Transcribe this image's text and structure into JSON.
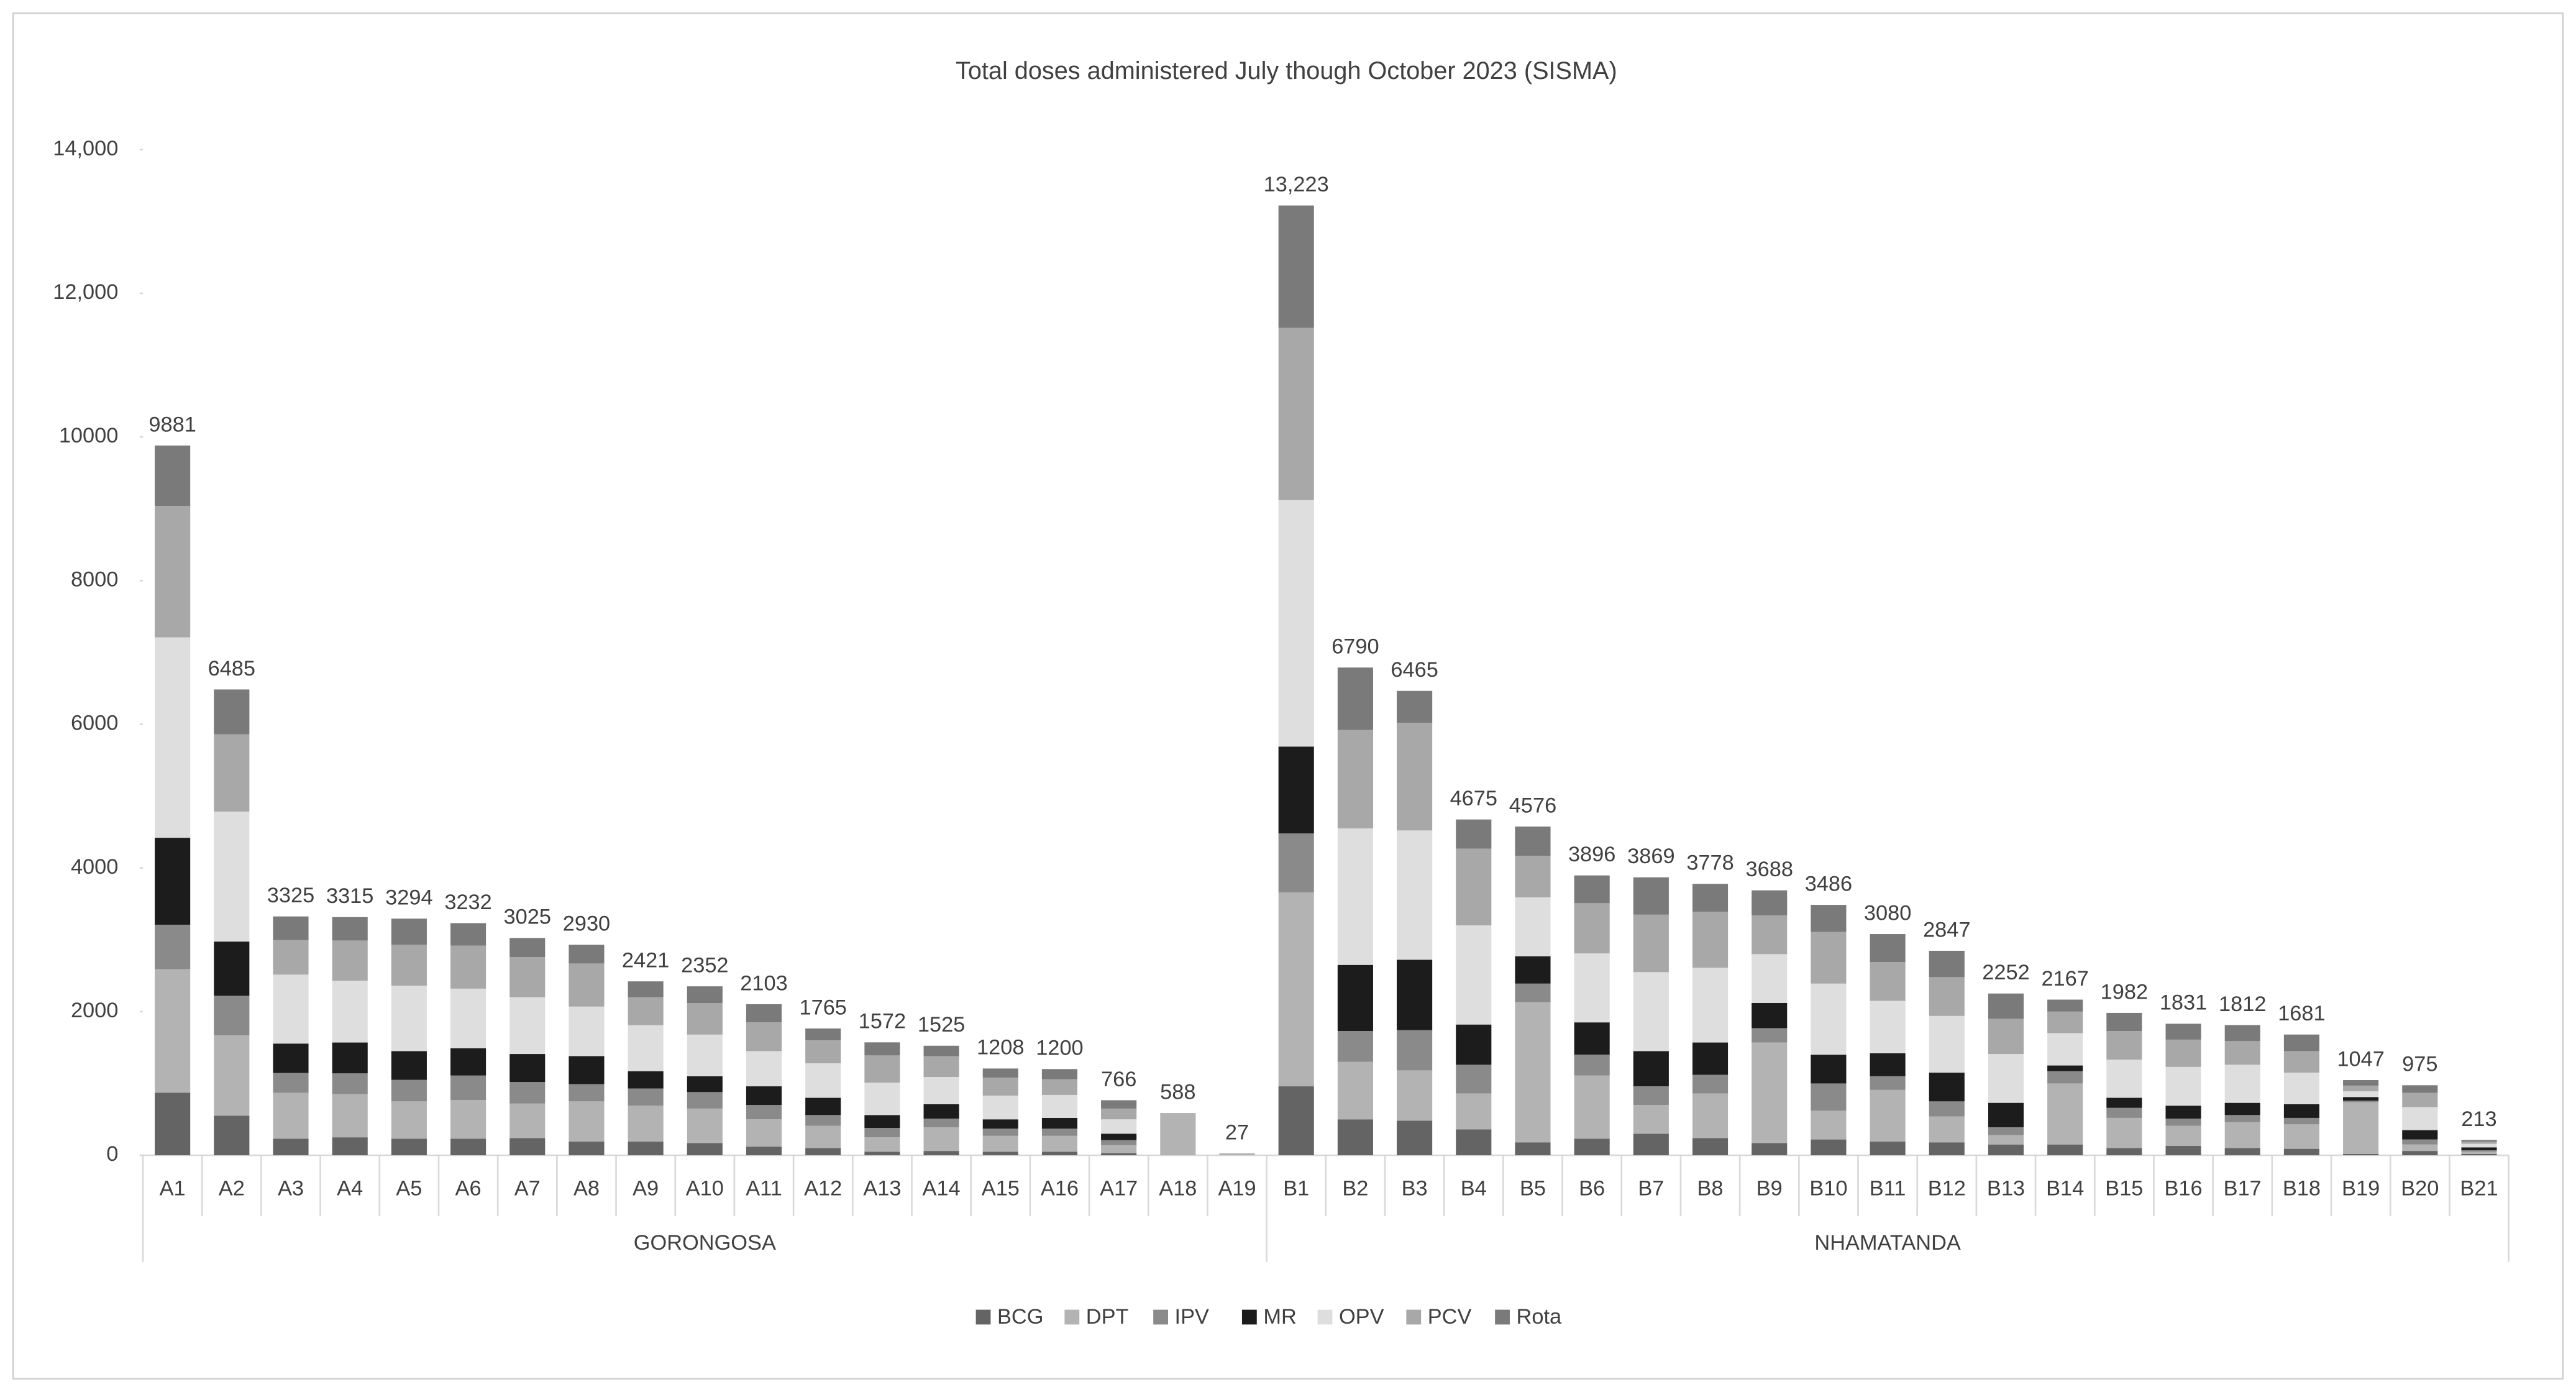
{
  "chart_data": {
    "type": "stacked_bar",
    "title": "Total doses administered July though October 2023 (SISMA)",
    "groups": [
      {
        "name": "GORONGOSA",
        "categories": [
          "A1",
          "A2",
          "A3",
          "A4",
          "A5",
          "A6",
          "A7",
          "A8",
          "A9",
          "A10",
          "A11",
          "A12",
          "A13",
          "A14",
          "A15",
          "A16",
          "A17",
          "A18",
          "A19"
        ]
      },
      {
        "name": "NHAMATANDA",
        "categories": [
          "B1",
          "B2",
          "B3",
          "B4",
          "B5",
          "B6",
          "B7",
          "B8",
          "B9",
          "B10",
          "B11",
          "B12",
          "B13",
          "B14",
          "B15",
          "B16",
          "B17",
          "B18",
          "B19",
          "B20",
          "B21"
        ]
      }
    ],
    "series": [
      {
        "name": "BCG",
        "color": "#646464",
        "values": [
          870,
          550,
          230,
          250,
          230,
          230,
          240,
          190,
          190,
          170,
          120,
          100,
          50,
          60,
          50,
          50,
          30,
          0,
          0,
          960,
          500,
          482,
          360,
          180,
          230,
          300,
          240,
          170,
          220,
          190,
          180,
          150,
          150,
          100,
          130,
          100,
          90,
          20,
          60,
          20
        ]
      },
      {
        "name": "DPT",
        "color": "#b3b3b3",
        "values": [
          1720,
          1120,
          640,
          600,
          520,
          540,
          480,
          560,
          500,
          480,
          380,
          310,
          200,
          330,
          220,
          220,
          110,
          588,
          27,
          2700,
          800,
          700,
          500,
          1950,
          880,
          400,
          620,
          1400,
          400,
          720,
          360,
          130,
          850,
          420,
          280,
          360,
          340,
          720,
          90,
          30
        ]
      },
      {
        "name": "IPV",
        "color": "#8a8a8a",
        "values": [
          620,
          550,
          275,
          290,
          300,
          340,
          300,
          240,
          240,
          230,
          200,
          150,
          130,
          120,
          100,
          100,
          70,
          0,
          0,
          820,
          430,
          560,
          400,
          260,
          290,
          260,
          260,
          200,
          380,
          190,
          210,
          110,
          170,
          140,
          100,
          100,
          90,
          20,
          70,
          20
        ]
      },
      {
        "name": "MR",
        "color": "#1c1c1c",
        "values": [
          1210,
          755,
          410,
          430,
          400,
          380,
          390,
          390,
          240,
          220,
          260,
          240,
          180,
          200,
          130,
          150,
          90,
          0,
          0,
          1210,
          920,
          980,
          560,
          380,
          450,
          490,
          450,
          350,
          400,
          320,
          400,
          340,
          80,
          140,
          180,
          170,
          190,
          50,
          130,
          40
        ]
      },
      {
        "name": "OPV",
        "color": "#dedede",
        "values": [
          2790,
          1810,
          960,
          860,
          910,
          830,
          790,
          690,
          640,
          580,
          490,
          480,
          450,
          380,
          330,
          320,
          200,
          0,
          0,
          3430,
          1900,
          1800,
          1380,
          820,
          960,
          1100,
          1040,
          680,
          990,
          730,
          790,
          680,
          450,
          530,
          540,
          530,
          440,
          80,
          320,
          50
        ]
      },
      {
        "name": "PCV",
        "color": "#a8a8a8",
        "values": [
          1830,
          1075,
          480,
          560,
          570,
          600,
          560,
          600,
          390,
          440,
          400,
          320,
          380,
          290,
          250,
          220,
          150,
          0,
          0,
          2400,
          1370,
          1500,
          1070,
          580,
          700,
          800,
          780,
          540,
          720,
          540,
          540,
          490,
          300,
          400,
          380,
          330,
          300,
          80,
          200,
          30
        ]
      },
      {
        "name": "Rota",
        "color": "#7a7a7a",
        "values": [
          841,
          625,
          330,
          325,
          364,
          312,
          265,
          260,
          221,
          232,
          253,
          165,
          182,
          145,
          128,
          140,
          116,
          0,
          0,
          1703,
          870,
          443,
          405,
          406,
          386,
          519,
          388,
          348,
          376,
          390,
          367,
          352,
          167,
          252,
          221,
          222,
          231,
          77,
          105,
          23
        ]
      }
    ],
    "totals": {
      "values": [
        9881,
        6485,
        3325,
        3315,
        3294,
        3232,
        3025,
        2930,
        2421,
        2352,
        2103,
        1765,
        1572,
        1525,
        1208,
        1200,
        766,
        588,
        27,
        13223,
        6790,
        6465,
        4675,
        4576,
        3896,
        3869,
        3778,
        3688,
        3486,
        3080,
        2847,
        2252,
        2167,
        1982,
        1831,
        1812,
        1681,
        1047,
        975,
        213
      ],
      "value_labels": [
        "9881",
        "6485",
        "3325",
        "3315",
        "3294",
        "3232",
        "3025",
        "2930",
        "2421",
        "2352",
        "2103",
        "1765",
        "1572",
        "1525",
        "1208",
        "1200",
        "766",
        "588",
        "27",
        "13,223",
        "6790",
        "6465",
        "4675",
        "4576",
        "3896",
        "3869",
        "3778",
        "3688",
        "3486",
        "3080",
        "2847",
        "2252",
        "2167",
        "1982",
        "1831",
        "1812",
        "1681",
        "1047",
        "975",
        "213"
      ]
    },
    "ylim": [
      0,
      14000
    ],
    "yticks": [
      0,
      2000,
      4000,
      6000,
      8000,
      10000,
      {
        "value": 12000,
        "label": "12,000"
      },
      {
        "value": 14000,
        "label": "14,000"
      }
    ],
    "legend": "bottom"
  }
}
